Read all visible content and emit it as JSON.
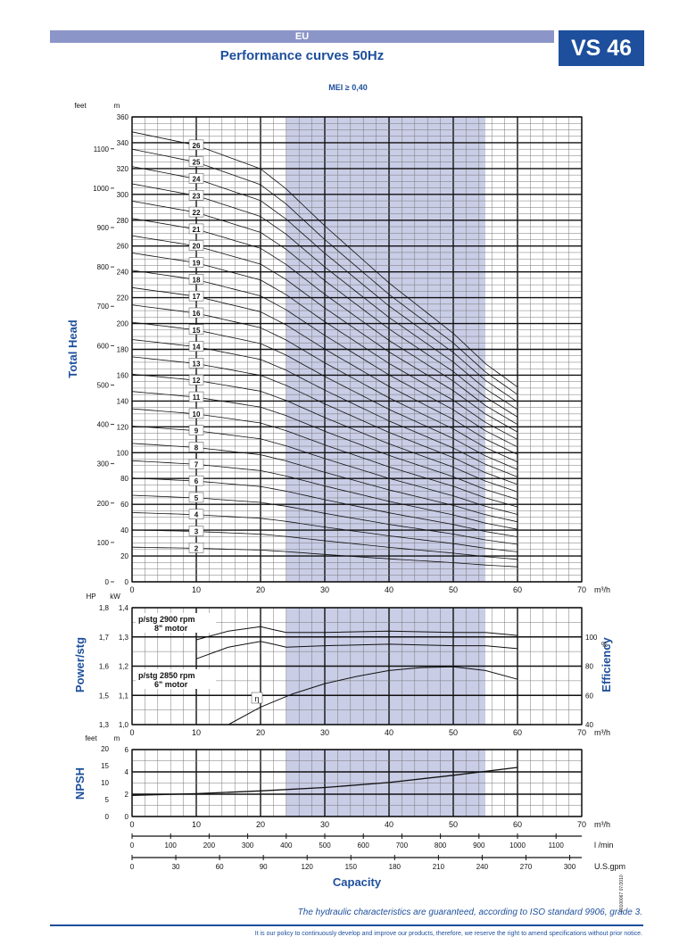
{
  "header": {
    "region": "EU",
    "model": "VS 46",
    "title": "Performance curves 50Hz",
    "mei": "MEI ≥ 0,40"
  },
  "footer": {
    "guarantee": "The hydraulic characteristics are guaranteed, according to ISO standard 9906, grade 3.",
    "policy": "It is our policy to continuously develop and improve our products, therefore, we reserve the right to amend specifications without prior notice.",
    "doc_code": "00100067 07/2010"
  },
  "colors": {
    "accent": "#1d4f9c",
    "band": "#c9cde6",
    "banner": "#8c95c8"
  },
  "chart_data": [
    {
      "type": "line",
      "id": "head",
      "ylabel": "Total Head",
      "ylabel_units": [
        "feet",
        "m"
      ],
      "xunit": "m³/h",
      "xlim": [
        0,
        70
      ],
      "ylim": [
        0,
        360
      ],
      "xticks": [
        0,
        10,
        20,
        30,
        40,
        50,
        60,
        70
      ],
      "yticks": [
        0,
        20,
        40,
        60,
        80,
        100,
        120,
        140,
        160,
        180,
        200,
        220,
        240,
        260,
        280,
        300,
        320,
        340,
        360
      ],
      "secondary_yticks_feet": [
        0,
        100,
        200,
        300,
        400,
        500,
        600,
        700,
        800,
        900,
        1000,
        1100
      ],
      "operating_range": [
        24,
        55
      ],
      "stages": [
        "26",
        "25",
        "24",
        "23",
        "22",
        "21",
        "20",
        "19",
        "18",
        "17",
        "16",
        "15",
        "14",
        "13",
        "12",
        "11",
        "10",
        "9",
        "8",
        "7",
        "6",
        "5",
        "4",
        "3",
        "2"
      ],
      "stage_numbers": [
        26,
        25,
        24,
        23,
        22,
        21,
        20,
        19,
        18,
        17,
        16,
        15,
        14,
        13,
        12,
        11,
        10,
        9,
        8,
        7,
        6,
        5,
        4,
        3,
        2
      ],
      "head_per_stage_m": {
        "x": [
          0,
          10,
          20,
          24,
          30,
          40,
          50,
          55,
          60
        ],
        "y": [
          13.4,
          13.0,
          12.3,
          11.7,
          10.6,
          8.9,
          7.4,
          6.5,
          5.8
        ]
      }
    },
    {
      "type": "line",
      "id": "power",
      "ylabel": "Power/stg",
      "ylabel_units": [
        "HP",
        "kW"
      ],
      "secondary_ylabel": "Efficiency",
      "secondary_unit": "%",
      "xunit": "m³/h",
      "xlim": [
        0,
        70
      ],
      "ylim": [
        1.0,
        1.4
      ],
      "yticks_kw": [
        1.0,
        1.1,
        1.2,
        1.3,
        1.4
      ],
      "yticks_hp": [
        "1,3",
        "1,5",
        "1,6",
        "1,7",
        "1,8"
      ],
      "yticks_hp_pos_kw": [
        1.0,
        1.1,
        1.2,
        1.3,
        1.4
      ],
      "eff_ticks": [
        40,
        60,
        80,
        100
      ],
      "eff_range": [
        40,
        120
      ],
      "legend_2900": [
        "p/stg 2900 rpm",
        "8\" motor"
      ],
      "legend_2850": [
        "p/stg 2850 rpm",
        "6\" motor"
      ],
      "eta_label": "η",
      "series": [
        {
          "name": "p/stg 2900 rpm",
          "x": [
            10,
            15,
            20,
            22,
            24,
            30,
            40,
            50,
            55,
            60
          ],
          "y": [
            1.29,
            1.32,
            1.335,
            1.325,
            1.315,
            1.315,
            1.32,
            1.315,
            1.315,
            1.305
          ]
        },
        {
          "name": "p/stg 2850 rpm",
          "x": [
            10,
            15,
            20,
            22,
            24,
            30,
            40,
            50,
            55,
            60
          ],
          "y": [
            1.225,
            1.265,
            1.285,
            1.275,
            1.265,
            1.27,
            1.275,
            1.27,
            1.27,
            1.26
          ]
        },
        {
          "name": "η",
          "x": [
            15,
            20,
            25,
            30,
            35,
            40,
            45,
            50,
            55,
            60
          ],
          "y": [
            40,
            52,
            61,
            68,
            73,
            77,
            79,
            79.5,
            77,
            71
          ]
        }
      ]
    },
    {
      "type": "line",
      "id": "npsh",
      "ylabel": "NPSH",
      "ylabel_units": [
        "feet",
        "m"
      ],
      "xunit": "m³/h",
      "xlim": [
        0,
        70
      ],
      "ylim": [
        0,
        6
      ],
      "yticks_m": [
        0,
        2,
        4,
        6
      ],
      "yticks_feet": [
        0,
        5,
        10,
        15,
        20
      ],
      "series": [
        {
          "name": "NPSH",
          "x": [
            0,
            10,
            20,
            30,
            40,
            50,
            60
          ],
          "y": [
            1.9,
            2.05,
            2.3,
            2.6,
            3.05,
            3.7,
            4.4
          ]
        }
      ]
    },
    {
      "type": "axis",
      "id": "lmin",
      "unit": "l /min",
      "ticks": [
        0,
        100,
        200,
        300,
        400,
        500,
        600,
        700,
        800,
        900,
        1000,
        1100
      ]
    },
    {
      "type": "axis",
      "id": "usgpm",
      "unit": "U.S.gpm",
      "ticks": [
        0,
        30,
        60,
        90,
        120,
        150,
        180,
        210,
        240,
        270,
        300
      ],
      "xlabel": "Capacity"
    }
  ]
}
